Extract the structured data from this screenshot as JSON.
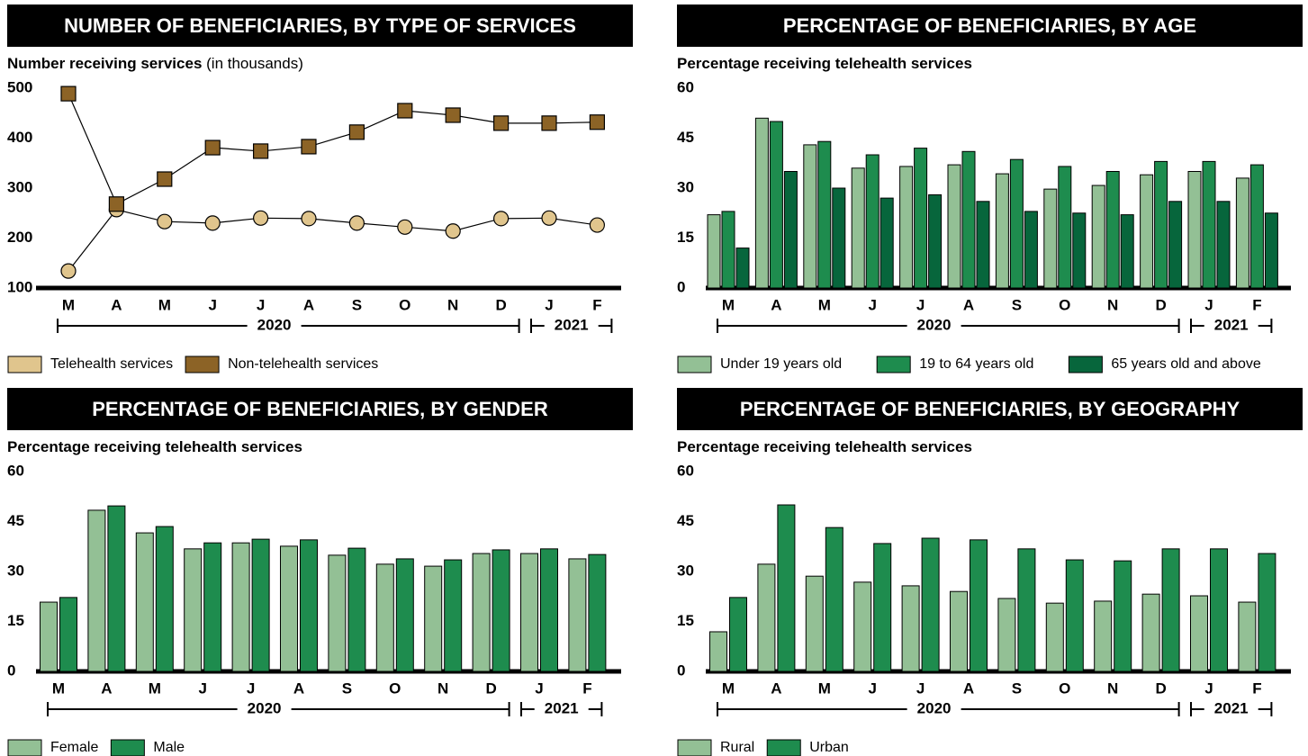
{
  "chart_data": [
    {
      "type": "line",
      "title": "NUMBER OF BENEFICIARIES, BY TYPE OF SERVICES",
      "y_label": "Number receiving services",
      "y_label_unit": "(in thousands)",
      "categories": [
        "M",
        "A",
        "M",
        "J",
        "J",
        "A",
        "S",
        "O",
        "N",
        "D",
        "J",
        "F"
      ],
      "years": [
        "2020",
        "2021"
      ],
      "ylim": [
        100,
        500
      ],
      "yticks": [
        100,
        200,
        300,
        400,
        500
      ],
      "series": [
        {
          "name": "Telehealth services",
          "color": "#e0c58d",
          "values": [
            134,
            257,
            233,
            230,
            240,
            239,
            230,
            222,
            214,
            239,
            240,
            226
          ]
        },
        {
          "name": "Non-telehealth services",
          "color": "#8c6326",
          "values": [
            489,
            268,
            318,
            381,
            374,
            383,
            412,
            455,
            446,
            430,
            430,
            432
          ]
        }
      ]
    },
    {
      "type": "bar",
      "title": "PERCENTAGE OF BENEFICIARIES, BY AGE",
      "y_label": "Percentage receiving telehealth services",
      "categories": [
        "M",
        "A",
        "M",
        "J",
        "J",
        "A",
        "S",
        "O",
        "N",
        "D",
        "J",
        "F"
      ],
      "years": [
        "2020",
        "2021"
      ],
      "ylim": [
        0,
        60
      ],
      "yticks": [
        0,
        15,
        30,
        45,
        60
      ],
      "series": [
        {
          "name": "Under 19 years old",
          "color": "#93c095",
          "values": [
            22,
            51,
            43,
            36,
            36.5,
            37,
            34.3,
            29.7,
            30.8,
            34,
            35,
            33
          ]
        },
        {
          "name": "19 to 64 years old",
          "color": "#1e8c4e",
          "values": [
            23,
            50,
            44,
            40,
            42,
            41,
            38.6,
            36.5,
            35,
            38,
            38,
            37
          ]
        },
        {
          "name": "65 years old and above",
          "color": "#07663c",
          "values": [
            12,
            35,
            30,
            27,
            28,
            26,
            23,
            22.5,
            22,
            26,
            26,
            22.5
          ]
        }
      ]
    },
    {
      "type": "bar",
      "title": "PERCENTAGE OF BENEFICIARIES, BY GENDER",
      "y_label": "Percentage receiving telehealth services",
      "categories": [
        "M",
        "A",
        "M",
        "J",
        "J",
        "A",
        "S",
        "O",
        "N",
        "D",
        "J",
        "F"
      ],
      "years": [
        "2020",
        "2021"
      ],
      "ylim": [
        0,
        60
      ],
      "yticks": [
        0,
        15,
        30,
        45,
        60
      ],
      "series": [
        {
          "name": "Female",
          "color": "#93c095",
          "values": [
            20.8,
            48.4,
            41.6,
            36.8,
            38.6,
            37.6,
            34.9,
            32.2,
            31.6,
            35.4,
            35.4,
            33.8
          ]
        },
        {
          "name": "Male",
          "color": "#1e8c4e",
          "values": [
            22.2,
            49.7,
            43.5,
            38.6,
            39.7,
            39.5,
            37,
            33.8,
            33.5,
            36.5,
            36.8,
            35.1
          ]
        }
      ]
    },
    {
      "type": "bar",
      "title": "PERCENTAGE OF BENEFICIARIES, BY GEOGRAPHY",
      "y_label": "Percentage receiving telehealth services",
      "categories": [
        "M",
        "A",
        "M",
        "J",
        "J",
        "A",
        "S",
        "O",
        "N",
        "D",
        "J",
        "F"
      ],
      "years": [
        "2020",
        "2021"
      ],
      "ylim": [
        0,
        60
      ],
      "yticks": [
        0,
        15,
        30,
        45,
        60
      ],
      "series": [
        {
          "name": "Rural",
          "color": "#93c095",
          "values": [
            11.9,
            32.2,
            28.6,
            26.8,
            25.7,
            24,
            21.9,
            20.5,
            21.1,
            23.2,
            22.7,
            20.8
          ]
        },
        {
          "name": "Urban",
          "color": "#1e8c4e",
          "values": [
            22.2,
            50,
            43.2,
            38.4,
            40,
            39.5,
            36.8,
            33.5,
            33.2,
            36.8,
            36.8,
            35.4
          ]
        }
      ]
    }
  ]
}
